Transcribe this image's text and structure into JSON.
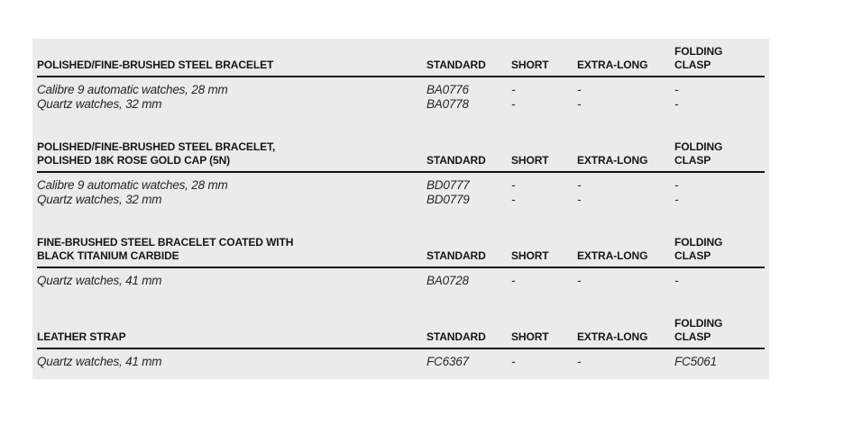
{
  "page": {
    "background": "#ffffff"
  },
  "table": {
    "panel_background": "#ebebeb",
    "rule_color": "#141414",
    "columns": [
      "STANDARD",
      "SHORT",
      "EXTRA-LONG",
      "FOLDING\nCLASP"
    ],
    "sections": [
      {
        "title": "POLISHED/FINE-BRUSHED STEEL BRACELET",
        "rows": [
          {
            "desc": "Calibre 9 automatic watches, 28 mm",
            "standard": "BA0776",
            "short": "-",
            "extra_long": "-",
            "folding_clasp": "-"
          },
          {
            "desc": "Quartz watches, 32 mm",
            "standard": "BA0778",
            "short": "-",
            "extra_long": "-",
            "folding_clasp": "-"
          }
        ]
      },
      {
        "title": "POLISHED/FINE-BRUSHED STEEL BRACELET,\nPOLISHED 18K ROSE GOLD CAP (5N)",
        "rows": [
          {
            "desc": "Calibre 9 automatic watches, 28 mm",
            "standard": "BD0777",
            "short": "-",
            "extra_long": "-",
            "folding_clasp": "-"
          },
          {
            "desc": "Quartz watches, 32 mm",
            "standard": "BD0779",
            "short": "-",
            "extra_long": "-",
            "folding_clasp": "-"
          }
        ]
      },
      {
        "title": "FINE-BRUSHED STEEL BRACELET COATED WITH\nBLACK TITANIUM CARBIDE",
        "rows": [
          {
            "desc": "Quartz watches, 41 mm",
            "standard": "BA0728",
            "short": "-",
            "extra_long": "-",
            "folding_clasp": "-"
          }
        ]
      },
      {
        "title": "LEATHER STRAP",
        "rows": [
          {
            "desc": "Quartz watches, 41 mm",
            "standard": "FC6367",
            "short": "-",
            "extra_long": "-",
            "folding_clasp": "FC5061"
          }
        ]
      }
    ]
  }
}
